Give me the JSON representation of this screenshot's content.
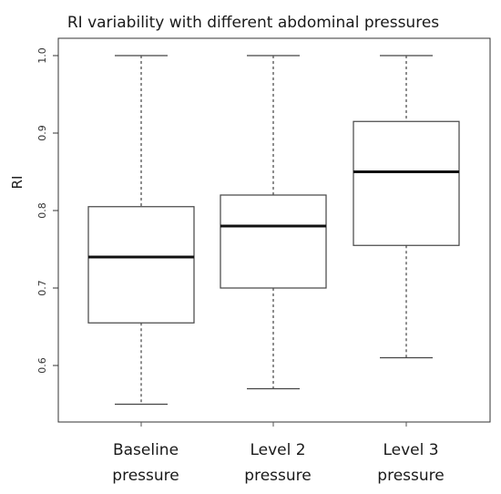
{
  "chart_data": {
    "type": "box",
    "title": "RI variability with different abdominal pressures",
    "xlabel": "",
    "ylabel": "RI",
    "ylim": [
      0.53,
      1.02
    ],
    "yticks": [
      "0.6",
      "0.7",
      "0.8",
      "0.9",
      "1.0"
    ],
    "grid": false,
    "categories": [
      {
        "line1": "Baseline",
        "line2": "pressure"
      },
      {
        "line1": "Level 2",
        "line2": "pressure"
      },
      {
        "line1": "Level 3",
        "line2": "pressure"
      }
    ],
    "boxes": [
      {
        "min": 0.55,
        "q1": 0.655,
        "median": 0.74,
        "q3": 0.805,
        "max": 1.0
      },
      {
        "min": 0.57,
        "q1": 0.7,
        "median": 0.78,
        "q3": 0.82,
        "max": 1.0
      },
      {
        "min": 0.61,
        "q1": 0.755,
        "median": 0.85,
        "q3": 0.915,
        "max": 1.0
      }
    ]
  }
}
